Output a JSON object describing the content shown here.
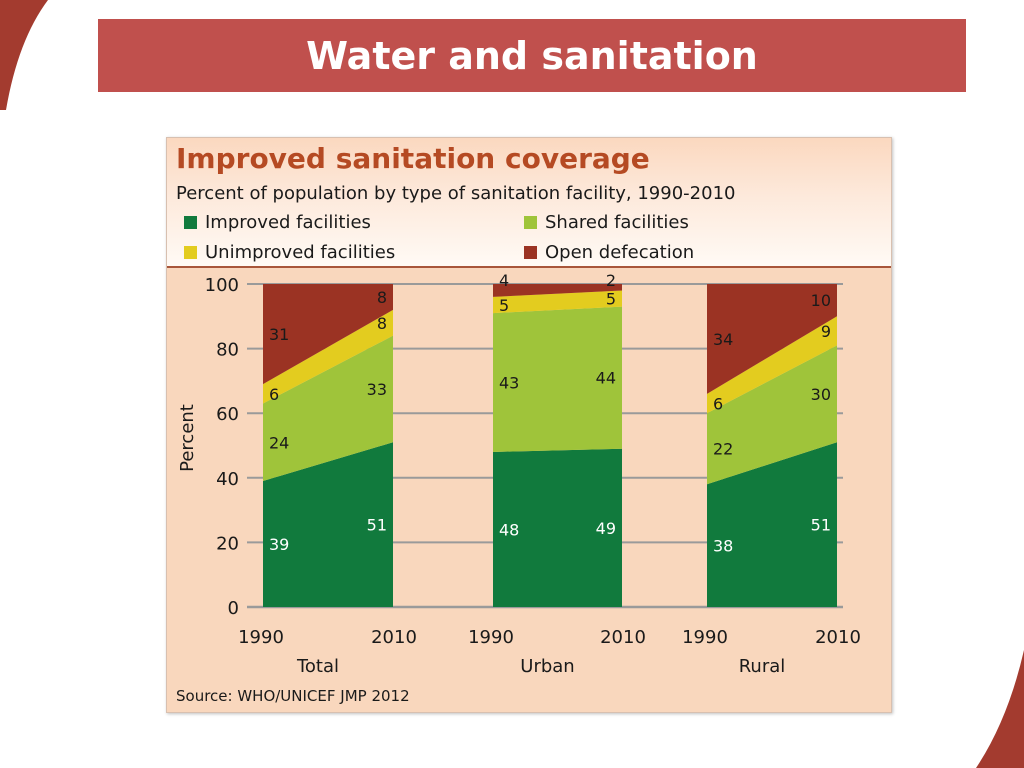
{
  "slide": {
    "title": "Water and sanitation"
  },
  "chart_data": {
    "type": "area",
    "title": "Improved sanitation coverage",
    "subtitle": "Percent of population by type of sanitation facility, 1990-2010",
    "ylabel": "Percent",
    "ylim": [
      0,
      100
    ],
    "yticks": [
      0,
      20,
      40,
      60,
      80,
      100
    ],
    "source": "Source:  WHO/UNICEF JMP 2012",
    "legend": [
      {
        "name": "Improved facilities",
        "color": "#117a3d"
      },
      {
        "name": "Shared facilities",
        "color": "#9fc43a"
      },
      {
        "name": "Unimproved facilities",
        "color": "#e3cc1f"
      },
      {
        "name": "Open defecation",
        "color": "#9b3323"
      }
    ],
    "groups": [
      {
        "name": "Total",
        "x": [
          "1990",
          "2010"
        ],
        "series": [
          {
            "name": "Improved facilities",
            "values": [
              39,
              51
            ]
          },
          {
            "name": "Shared facilities",
            "values": [
              24,
              33
            ]
          },
          {
            "name": "Unimproved facilities",
            "values": [
              6,
              8
            ]
          },
          {
            "name": "Open defecation",
            "values": [
              31,
              8
            ]
          }
        ]
      },
      {
        "name": "Urban",
        "x": [
          "1990",
          "2010"
        ],
        "series": [
          {
            "name": "Improved facilities",
            "values": [
              48,
              49
            ]
          },
          {
            "name": "Shared facilities",
            "values": [
              43,
              44
            ]
          },
          {
            "name": "Unimproved facilities",
            "values": [
              5,
              5
            ]
          },
          {
            "name": "Open defecation",
            "values": [
              4,
              2
            ]
          }
        ]
      },
      {
        "name": "Rural",
        "x": [
          "1990",
          "2010"
        ],
        "series": [
          {
            "name": "Improved facilities",
            "values": [
              38,
              51
            ]
          },
          {
            "name": "Shared facilities",
            "values": [
              22,
              30
            ]
          },
          {
            "name": "Unimproved facilities",
            "values": [
              6,
              9
            ]
          },
          {
            "name": "Open defecation",
            "values": [
              34,
              10
            ]
          }
        ]
      }
    ]
  }
}
